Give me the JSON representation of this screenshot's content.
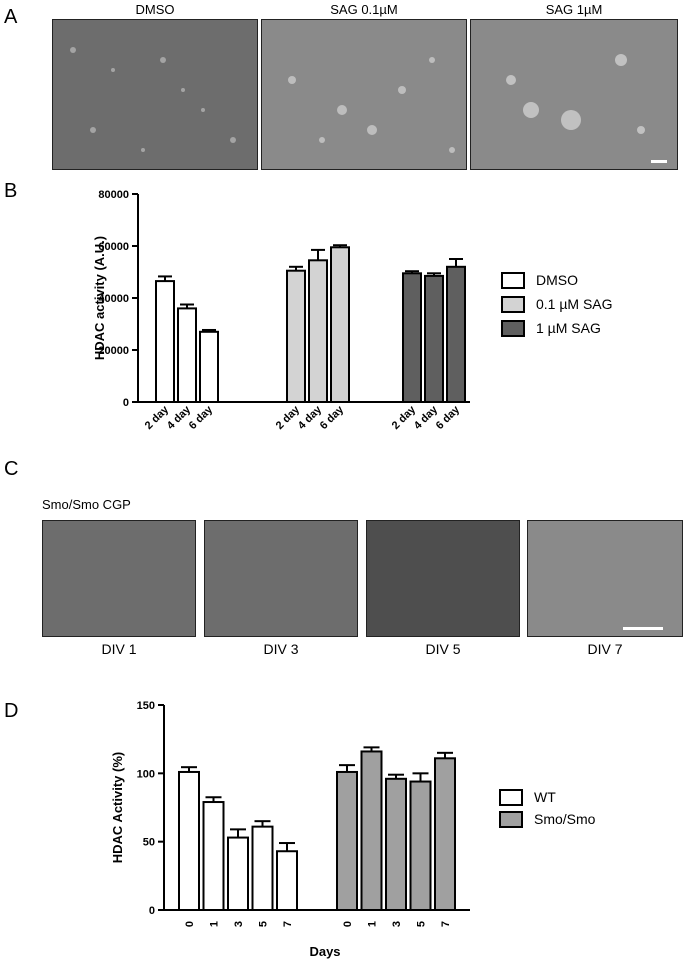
{
  "panels": {
    "a": {
      "letter": "A",
      "images": [
        "DMSO",
        "SAG 0.1µM",
        "SAG 1µM"
      ]
    },
    "b": {
      "letter": "B"
    },
    "c": {
      "letter": "C",
      "header": "Smo/Smo CGP",
      "images": [
        "DIV 1",
        "DIV 3",
        "DIV 5",
        "DIV 7"
      ]
    },
    "d": {
      "letter": "D"
    }
  },
  "chart_data": [
    {
      "type": "bar",
      "ylabel": "HDAC activity (A.U.)",
      "xlabel": "",
      "ylim": [
        0,
        80000
      ],
      "yticks": [
        0,
        20000,
        40000,
        60000,
        80000
      ],
      "groups": [
        {
          "name": "DMSO",
          "color": "#ffffff",
          "categories": [
            "2 day",
            "4 day",
            "6 day"
          ],
          "values": [
            46500,
            36000,
            27000
          ],
          "errors": [
            1800,
            1500,
            700
          ]
        },
        {
          "name": "0.1 µM SAG",
          "color": "#d3d3d3",
          "categories": [
            "2 day",
            "4 day",
            "6 day"
          ],
          "values": [
            50500,
            54500,
            59500
          ],
          "errors": [
            1500,
            4000,
            800
          ]
        },
        {
          "name": "1 µM SAG",
          "color": "#5f5f5f",
          "categories": [
            "2 day",
            "4 day",
            "6 day"
          ],
          "values": [
            49500,
            48500,
            52000
          ],
          "errors": [
            800,
            1000,
            3000
          ]
        }
      ],
      "legend": [
        "DMSO",
        "0.1 µM SAG",
        "1 µM SAG"
      ]
    },
    {
      "type": "bar",
      "ylabel": "HDAC Activity (%)",
      "xlabel": "Days",
      "ylim": [
        0,
        150
      ],
      "yticks": [
        0,
        50,
        100,
        150
      ],
      "groups": [
        {
          "name": "WT",
          "color": "#ffffff",
          "categories": [
            "0",
            "1",
            "3",
            "5",
            "7"
          ],
          "values": [
            101,
            79,
            53,
            61,
            43
          ],
          "errors": [
            3.5,
            3.5,
            6,
            4,
            6
          ]
        },
        {
          "name": "Smo/Smo",
          "color": "#a0a0a0",
          "categories": [
            "0",
            "1",
            "3",
            "5",
            "7"
          ],
          "values": [
            101,
            116,
            96,
            94,
            111
          ],
          "errors": [
            5,
            3,
            3,
            6,
            4
          ]
        }
      ],
      "legend": [
        "WT",
        "Smo/Smo"
      ]
    }
  ]
}
